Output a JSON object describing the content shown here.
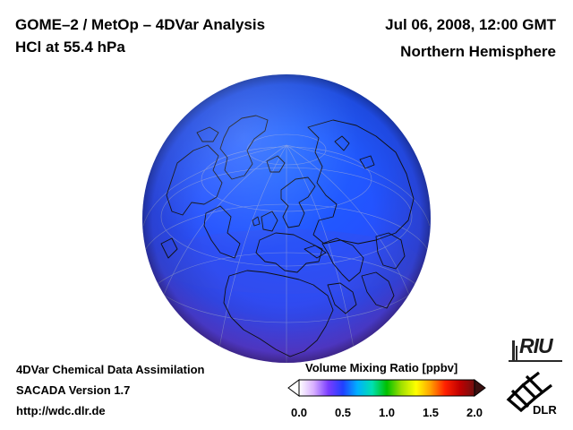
{
  "header": {
    "product": "GOME–2 / MetOp – 4DVar Analysis",
    "species": "HCl at 55.4 hPa",
    "datetime": "Jul 06, 2008, 12:00 GMT",
    "region": "Northern Hemisphere"
  },
  "footer": {
    "line1": "4DVar Chemical Data Assimilation",
    "line2": "SACADA Version 1.7",
    "line3": "http://wdc.dlr.de"
  },
  "colorbar": {
    "title": "Volume Mixing Ratio [ppbv]",
    "ticks": [
      "0.0",
      "0.5",
      "1.0",
      "1.5",
      "2.0"
    ],
    "colors": [
      "#ffffff",
      "#d8b0ff",
      "#7a3cff",
      "#2040ff",
      "#00b0ff",
      "#00e0b0",
      "#00c000",
      "#a0e000",
      "#ffff00",
      "#ffa000",
      "#ff2000",
      "#c00000",
      "#701010"
    ]
  },
  "globe": {
    "colors": {
      "polar": "#1c5cff",
      "midlat": "#2a48f0",
      "tropics": "#5a3cd0",
      "coast": "#101010",
      "grid": "#9aa6d8"
    }
  },
  "logos": {
    "riu": "RIU",
    "dlr": "DLR"
  }
}
